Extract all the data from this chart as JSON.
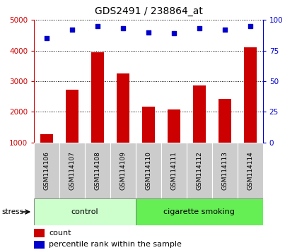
{
  "title": "GDS2491 / 238864_at",
  "samples": [
    "GSM114106",
    "GSM114107",
    "GSM114108",
    "GSM114109",
    "GSM114110",
    "GSM114111",
    "GSM114112",
    "GSM114113",
    "GSM114114"
  ],
  "counts": [
    1280,
    2720,
    3950,
    3250,
    2160,
    2070,
    2870,
    2420,
    4100
  ],
  "percentiles": [
    85,
    92,
    95,
    93,
    90,
    89,
    93,
    92,
    95
  ],
  "groups": [
    {
      "label": "control",
      "start": 0,
      "end": 4,
      "color": "#ccffcc"
    },
    {
      "label": "cigarette smoking",
      "start": 4,
      "end": 9,
      "color": "#66ee55"
    }
  ],
  "bar_color": "#cc0000",
  "dot_color": "#0000cc",
  "ylim_left": [
    1000,
    5000
  ],
  "ylim_right": [
    0,
    100
  ],
  "yticks_left": [
    1000,
    2000,
    3000,
    4000,
    5000
  ],
  "yticks_right": [
    0,
    25,
    50,
    75,
    100
  ],
  "left_axis_color": "#cc0000",
  "right_axis_color": "#0000cc",
  "sample_bg_color": "#cccccc",
  "stress_label": "stress"
}
